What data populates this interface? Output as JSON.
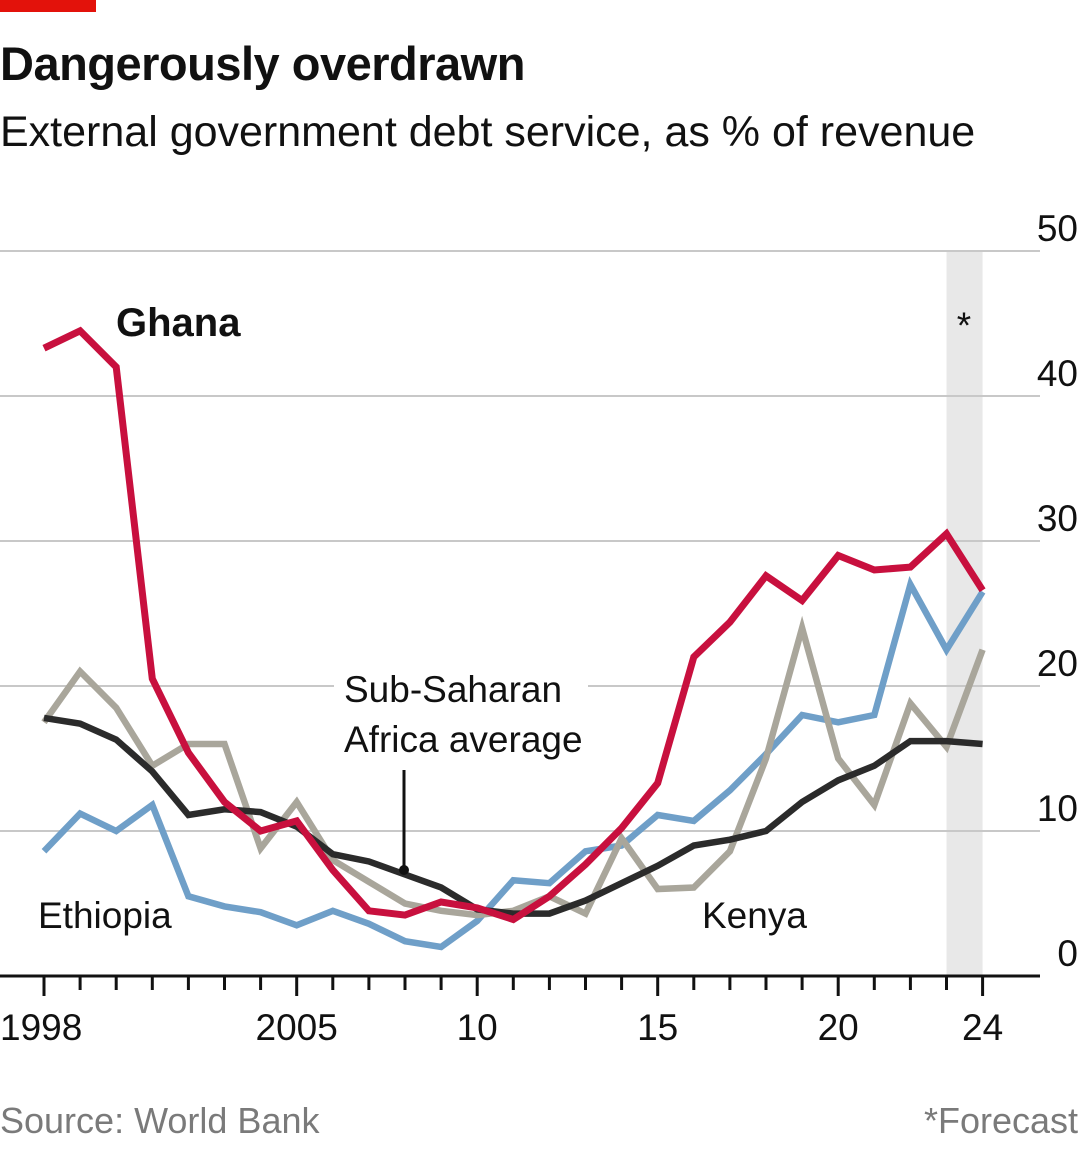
{
  "header": {
    "title": "Dangerously overdrawn",
    "subtitle": "External government debt service, as % of revenue"
  },
  "footer": {
    "source": "Source: World Bank",
    "note": "*Forecast"
  },
  "colors": {
    "ghana": "#c8103e",
    "ethiopia": "#6f9fc8",
    "kenya": "#a9a69b",
    "average": "#2b2b2b",
    "grid": "#c8c8c8",
    "forecast_band": "#e8e8e8",
    "brand": "#e3120b"
  },
  "chart_data": {
    "type": "line",
    "title": "Dangerously overdrawn",
    "subtitle": "External government debt service, as % of revenue",
    "x": [
      1998,
      1999,
      2000,
      2001,
      2002,
      2003,
      2004,
      2005,
      2006,
      2007,
      2008,
      2009,
      2010,
      2011,
      2012,
      2013,
      2014,
      2015,
      2016,
      2017,
      2018,
      2019,
      2020,
      2021,
      2022,
      2023,
      2024
    ],
    "x_ticks": [
      1998,
      2005,
      2010,
      2015,
      2020,
      2024
    ],
    "x_tick_labels": [
      "1998",
      "2005",
      "10",
      "15",
      "20",
      "24"
    ],
    "ylim": [
      0,
      50
    ],
    "y_ticks": [
      0,
      10,
      20,
      30,
      40,
      50
    ],
    "y_tick_labels": [
      "0",
      "10",
      "20",
      "30",
      "40",
      "50"
    ],
    "y_axis_side": "right",
    "grid": true,
    "forecast_marker": "*",
    "forecast_span": [
      2023,
      2024
    ],
    "series": [
      {
        "name": "Ethiopia",
        "key": "ethiopia",
        "values": [
          8.6,
          11.2,
          10.0,
          11.8,
          5.5,
          4.8,
          4.4,
          3.5,
          4.5,
          3.6,
          2.4,
          2.0,
          3.8,
          6.6,
          6.4,
          8.6,
          9.0,
          11.1,
          10.7,
          12.8,
          15.3,
          18.0,
          17.5,
          18.0,
          27.0,
          22.5,
          26.5
        ]
      },
      {
        "name": "Kenya",
        "key": "kenya",
        "values": [
          17.5,
          21.0,
          18.5,
          14.5,
          16.0,
          16.0,
          8.8,
          12.0,
          8.0,
          6.5,
          5.0,
          4.5,
          4.2,
          4.5,
          5.5,
          4.3,
          9.5,
          6.0,
          6.1,
          8.6,
          15.0,
          24.0,
          15.0,
          11.8,
          18.8,
          15.8,
          22.5
        ]
      },
      {
        "name": "Sub-Saharan Africa average",
        "key": "average",
        "values": [
          17.8,
          17.4,
          16.3,
          14.1,
          11.1,
          11.5,
          11.3,
          10.3,
          8.4,
          7.9,
          7.0,
          6.1,
          4.6,
          4.3,
          4.3,
          5.2,
          6.4,
          7.6,
          9.0,
          9.4,
          10.0,
          12.0,
          13.5,
          14.5,
          16.2,
          16.2,
          16.0
        ]
      },
      {
        "name": "Ghana",
        "key": "ghana",
        "values": [
          43.3,
          44.5,
          42.0,
          20.5,
          15.4,
          12.0,
          10.0,
          10.7,
          7.3,
          4.5,
          4.2,
          5.1,
          4.7,
          3.9,
          5.5,
          7.7,
          10.2,
          13.3,
          22.0,
          24.4,
          27.6,
          25.9,
          29.0,
          28.0,
          28.2,
          30.5,
          26.6
        ]
      }
    ],
    "labels": {
      "ghana": "Ghana",
      "ethiopia": "Ethiopia",
      "kenya": "Kenya",
      "average_line1": "Sub-Saharan",
      "average_line2": "Africa average"
    }
  }
}
